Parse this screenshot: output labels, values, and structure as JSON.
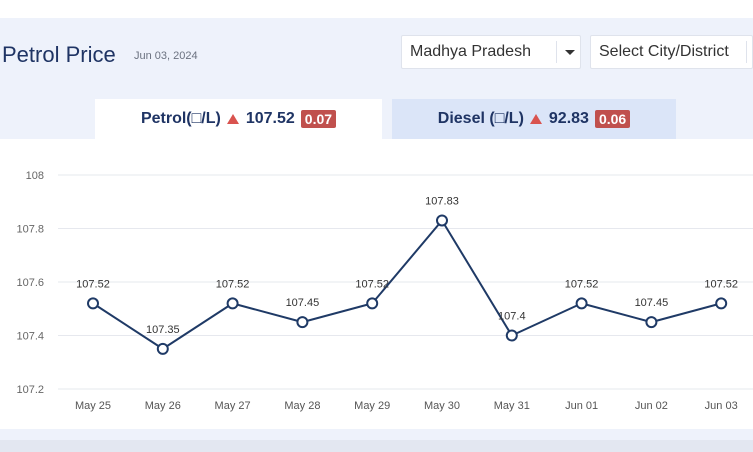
{
  "header": {
    "title": "Petrol Price",
    "date": "Jun 03, 2024"
  },
  "filters": {
    "state": "Madhya Pradesh",
    "city": "Select City/District"
  },
  "tabs": [
    {
      "label": "Petrol(□/L)",
      "price": "107.52",
      "change": "0.07",
      "active": true
    },
    {
      "label": "Diesel (□/L)",
      "price": "92.83",
      "change": "0.06",
      "active": false
    }
  ],
  "icons": {
    "dropdown": "chevron-down-icon",
    "increase": "triangle-up-icon"
  },
  "colors": {
    "line": "#1f3a66",
    "increase": "#d9534f",
    "badge": "#c0504d",
    "title": "#1f3464"
  },
  "chart_data": {
    "type": "line",
    "title": "",
    "xlabel": "",
    "ylabel": "",
    "categories": [
      "May 25",
      "May 26",
      "May 27",
      "May 28",
      "May 29",
      "May 30",
      "May 31",
      "Jun 01",
      "Jun 02",
      "Jun 03"
    ],
    "series": [
      {
        "values": [
          107.52,
          107.35,
          107.52,
          107.45,
          107.52,
          107.83,
          107.4,
          107.52,
          107.45,
          107.52
        ]
      }
    ],
    "data_labels": [
      "107.52",
      "107.35",
      "107.52",
      "107.45",
      "107.52",
      "107.83",
      "107.4",
      "107.52",
      "107.45",
      "107.52"
    ],
    "yticks": [
      "107.2",
      "107.4",
      "107.6",
      "107.8",
      "108"
    ],
    "ylim": [
      107.2,
      108
    ],
    "grid": true,
    "legend": "none"
  }
}
